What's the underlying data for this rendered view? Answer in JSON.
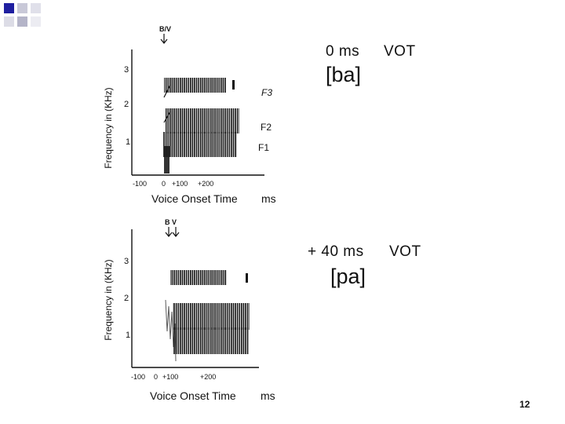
{
  "slide": {
    "page_number": "12"
  },
  "panels": [
    {
      "burst_label": "B/V",
      "y_axis_label": "Frequency in (KHz)",
      "y_ticks": [
        "3",
        "2",
        "1"
      ],
      "x_ticks": [
        "-100",
        "0",
        "+100",
        "+200"
      ],
      "x_axis_label": "Voice Onset Time",
      "x_unit": "ms",
      "formant_labels": [
        "F3",
        "F2",
        "F1"
      ],
      "vot_value": "0 ms",
      "vot_label": "VOT",
      "syllable": "[ba]"
    },
    {
      "burst_label": "B V",
      "y_axis_label": "Frequency in (KHz)",
      "y_ticks": [
        "3",
        "2",
        "1"
      ],
      "x_ticks": [
        "-100",
        "0",
        "+100",
        "+200"
      ],
      "x_axis_label": "Voice Onset Time",
      "x_unit": "ms",
      "vot_value": "+ 40 ms",
      "vot_label": "VOT",
      "syllable": "[pa]"
    }
  ]
}
